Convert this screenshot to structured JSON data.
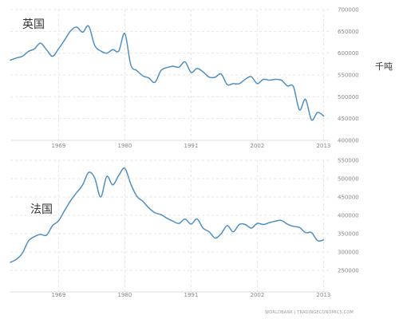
{
  "unit": "千吨",
  "source": "WORLDBANK | TRADINGECONOMICS.COM",
  "colors": {
    "line": "#4f8fc0",
    "grid": "#e6e6e6",
    "tick": "#888888"
  },
  "chart_data": [
    {
      "type": "line",
      "title": "英国",
      "xlabel": "",
      "ylabel": "千吨",
      "xlim": [
        1961,
        2014
      ],
      "ylim": [
        400000,
        700000
      ],
      "x_ticks": [
        1969,
        1980,
        1991,
        2002,
        2013
      ],
      "y_ticks": [
        400000,
        450000,
        500000,
        550000,
        600000,
        650000,
        700000
      ],
      "grid": true,
      "series": [
        {
          "x": [
            1961,
            1962,
            1963,
            1964,
            1965,
            1966,
            1967,
            1968,
            1969,
            1970,
            1971,
            1972,
            1973,
            1974,
            1975,
            1976,
            1977,
            1978,
            1979,
            1980,
            1981,
            1982,
            1983,
            1984,
            1985,
            1986,
            1987,
            1988,
            1989,
            1990,
            1991,
            1992,
            1993,
            1994,
            1995,
            1996,
            1997,
            1998,
            1999,
            2000,
            2001,
            2002,
            2003,
            2004,
            2005,
            2006,
            2007,
            2008,
            2009,
            2010,
            2011,
            2012,
            2013
          ],
          "values": [
            584000,
            589000,
            593000,
            604000,
            610000,
            623000,
            608000,
            593000,
            610000,
            630000,
            651000,
            660000,
            648000,
            662000,
            618000,
            605000,
            600000,
            608000,
            605000,
            645000,
            573000,
            560000,
            548000,
            543000,
            533000,
            560000,
            567000,
            570000,
            568000,
            580000,
            556000,
            565000,
            557000,
            545000,
            545000,
            552000,
            528000,
            530000,
            530000,
            540000,
            546000,
            530000,
            540000,
            538000,
            540000,
            538000,
            525000,
            523000,
            470000,
            494000,
            447000,
            464000,
            456000
          ]
        }
      ]
    },
    {
      "type": "line",
      "title": "法国",
      "xlabel": "",
      "ylabel": "",
      "xlim": [
        1961,
        2014
      ],
      "ylim": [
        250000,
        550000
      ],
      "x_ticks": [
        1969,
        1980,
        1991,
        2002,
        2013
      ],
      "y_ticks": [
        250000,
        300000,
        350000,
        400000,
        450000,
        500000,
        550000
      ],
      "grid": true,
      "series": [
        {
          "x": [
            1961,
            1962,
            1963,
            1964,
            1965,
            1966,
            1967,
            1968,
            1969,
            1970,
            1971,
            1972,
            1973,
            1974,
            1975,
            1976,
            1977,
            1978,
            1979,
            1980,
            1981,
            1982,
            1983,
            1984,
            1985,
            1986,
            1987,
            1988,
            1989,
            1990,
            1991,
            1992,
            1993,
            1994,
            1995,
            1996,
            1997,
            1998,
            1999,
            2000,
            2001,
            2002,
            2003,
            2004,
            2005,
            2006,
            2007,
            2008,
            2009,
            2010,
            2011,
            2012,
            2013
          ],
          "values": [
            272000,
            280000,
            297000,
            330000,
            342000,
            348000,
            346000,
            372000,
            385000,
            413000,
            440000,
            462000,
            483000,
            517000,
            502000,
            450000,
            506000,
            483000,
            509000,
            528000,
            485000,
            452000,
            438000,
            420000,
            407000,
            402000,
            392000,
            384000,
            378000,
            390000,
            376000,
            390000,
            365000,
            355000,
            338000,
            350000,
            372000,
            355000,
            375000,
            375000,
            365000,
            378000,
            375000,
            380000,
            384000,
            386000,
            376000,
            370000,
            367000,
            353000,
            353000,
            331000,
            333000
          ]
        }
      ]
    }
  ]
}
